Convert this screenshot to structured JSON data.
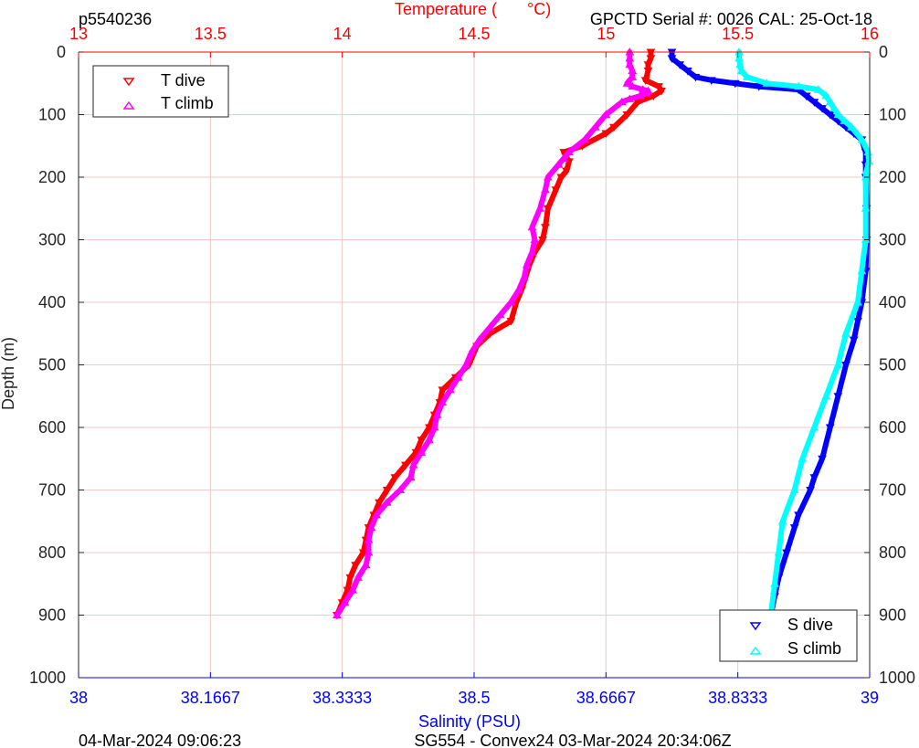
{
  "header": {
    "left_id": "p5540236",
    "right_info": "GPCTD Serial #: 0026 CAL: 25-Oct-18"
  },
  "footer": {
    "left_date": "04-Mar-2024 09:06:23",
    "center_info": "SG554 - Convex24 03-Mar-2024 20:34:06Z"
  },
  "colors": {
    "t_dive": "#ff0000",
    "t_climb": "#ff00ff",
    "s_dive": "#0000ff",
    "s_climb": "#00ffff",
    "temp_axis": "#ff0000",
    "sal_axis": "#0000ff",
    "grid": "#f2c8c8"
  },
  "chart_data": {
    "type": "line",
    "title": "",
    "ylabel": "Depth (m)",
    "ylim": [
      0,
      1000
    ],
    "y_reversed": true,
    "y_ticks": [
      "0",
      "100",
      "200",
      "300",
      "400",
      "500",
      "600",
      "700",
      "800",
      "900",
      "1000"
    ],
    "temperature_axis": {
      "label_left": "Temperature (",
      "label_unit": "°C)",
      "lim": [
        13,
        16
      ],
      "ticks": [
        "13",
        "13.5",
        "14",
        "14.5",
        "15",
        "15.5",
        "16"
      ],
      "position": "top"
    },
    "salinity_axis": {
      "label": "Salinity (PSU)",
      "lim": [
        38,
        39
      ],
      "ticks": [
        "38",
        "38.1667",
        "38.3333",
        "38.5",
        "38.6667",
        "38.8333",
        "39"
      ],
      "position": "bottom"
    },
    "grid": true,
    "legends": [
      {
        "placement": "top-left",
        "entries": [
          "T dive",
          "T climb"
        ]
      },
      {
        "placement": "bottom-right",
        "entries": [
          "S dive",
          "S climb"
        ]
      }
    ],
    "series": [
      {
        "name": "T dive",
        "axis": "temperature",
        "marker": "triangle-down",
        "depth": [
          0,
          10,
          20,
          30,
          45,
          55,
          62,
          70,
          80,
          100,
          120,
          130,
          150,
          160,
          175,
          190,
          200,
          220,
          250,
          280,
          300,
          320,
          340,
          380,
          400,
          430,
          450,
          470,
          500,
          520,
          540,
          560,
          580,
          600,
          620,
          640,
          660,
          680,
          700,
          720,
          740,
          760,
          780,
          800,
          820,
          840,
          860,
          880,
          900
        ],
        "value": [
          15.17,
          15.17,
          15.16,
          15.16,
          15.15,
          15.2,
          15.21,
          15.18,
          15.12,
          15.08,
          15.03,
          15.0,
          14.91,
          14.84,
          14.86,
          14.85,
          14.83,
          14.81,
          14.78,
          14.77,
          14.76,
          14.73,
          14.71,
          14.68,
          14.66,
          14.64,
          14.56,
          14.51,
          14.48,
          14.43,
          14.38,
          14.37,
          14.35,
          14.33,
          14.3,
          14.28,
          14.24,
          14.2,
          14.17,
          14.14,
          14.12,
          14.1,
          14.09,
          14.08,
          14.05,
          14.03,
          14.02,
          14.0,
          13.98
        ]
      },
      {
        "name": "T climb",
        "axis": "temperature",
        "marker": "triangle-up",
        "depth": [
          0,
          10,
          20,
          30,
          40,
          50,
          55,
          60,
          62,
          65,
          70,
          75,
          80,
          100,
          120,
          140,
          160,
          170,
          180,
          200,
          220,
          250,
          280,
          300,
          320,
          340,
          360,
          380,
          400,
          420,
          440,
          460,
          480,
          500,
          520,
          540,
          560,
          580,
          600,
          620,
          640,
          660,
          680,
          700,
          720,
          740,
          760,
          780,
          800,
          820,
          840,
          860,
          880,
          900
        ],
        "value": [
          15.09,
          15.09,
          15.09,
          15.1,
          15.1,
          15.08,
          15.1,
          15.14,
          15.16,
          15.15,
          15.13,
          15.09,
          15.06,
          15.0,
          14.96,
          14.92,
          14.86,
          14.84,
          14.82,
          14.78,
          14.77,
          14.75,
          14.72,
          14.73,
          14.72,
          14.7,
          14.69,
          14.67,
          14.64,
          14.6,
          14.56,
          14.52,
          14.49,
          14.47,
          14.44,
          14.41,
          14.38,
          14.36,
          14.35,
          14.33,
          14.3,
          14.27,
          14.26,
          14.22,
          14.17,
          14.13,
          14.11,
          14.1,
          14.1,
          14.09,
          14.06,
          14.04,
          14.01,
          13.98
        ]
      },
      {
        "name": "S dive",
        "axis": "salinity",
        "marker": "triangle-down",
        "depth": [
          0,
          10,
          20,
          30,
          40,
          45,
          50,
          55,
          60,
          70,
          80,
          90,
          100,
          110,
          120,
          130,
          140,
          160,
          180,
          200,
          250,
          300,
          350,
          400,
          430,
          460,
          500,
          550,
          600,
          650,
          680,
          700,
          740,
          760,
          800,
          840,
          870,
          900
        ],
        "value": [
          38.75,
          38.75,
          38.76,
          38.77,
          38.78,
          38.8,
          38.83,
          38.86,
          38.91,
          38.92,
          38.93,
          38.94,
          38.95,
          38.96,
          38.97,
          38.98,
          38.99,
          38.995,
          38.995,
          38.995,
          38.996,
          38.996,
          38.995,
          38.99,
          38.985,
          38.98,
          38.97,
          38.96,
          38.95,
          38.94,
          38.93,
          38.925,
          38.91,
          38.905,
          38.895,
          38.885,
          38.88,
          38.875
        ]
      },
      {
        "name": "S climb",
        "axis": "salinity",
        "marker": "triangle-up",
        "depth": [
          0,
          10,
          20,
          30,
          40,
          50,
          55,
          60,
          70,
          80,
          90,
          100,
          110,
          120,
          140,
          160,
          175,
          190,
          200,
          250,
          300,
          350,
          400,
          450,
          500,
          550,
          600,
          650,
          700,
          750,
          800,
          850,
          900
        ],
        "value": [
          38.835,
          38.835,
          38.836,
          38.838,
          38.845,
          38.87,
          38.91,
          38.935,
          38.945,
          38.95,
          38.955,
          38.96,
          38.968,
          38.977,
          38.99,
          38.998,
          38.999,
          38.996,
          38.995,
          38.995,
          38.995,
          38.99,
          38.985,
          38.97,
          38.96,
          38.945,
          38.93,
          38.915,
          38.905,
          38.89,
          38.885,
          38.88,
          38.875
        ]
      }
    ]
  }
}
